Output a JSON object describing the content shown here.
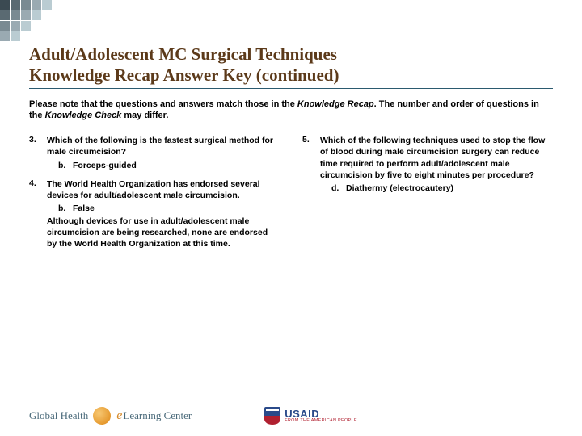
{
  "deco_colors": [
    "#3b4a52",
    "#5a6a72",
    "#7a8a92",
    "#9aaab2",
    "#baccd2",
    "#5a6a72",
    "#7a8a92",
    "#9aaab2",
    "#baccd2",
    "transparent",
    "#7a8a92",
    "#9aaab2",
    "#baccd2",
    "transparent",
    "transparent",
    "#9aaab2",
    "#baccd2",
    "transparent",
    "transparent",
    "transparent"
  ],
  "title_line1": "Adult/Adolescent MC Surgical Techniques",
  "title_line2": "Knowledge Recap Answer Key (continued)",
  "intro_pre": "Please note that the questions and answers match those in the ",
  "intro_em1": "Knowledge Recap",
  "intro_mid": ". The number and order of questions in the ",
  "intro_em2": "Knowledge Check",
  "intro_post": " may differ.",
  "left": [
    {
      "num": "3.",
      "question": "Which of the following is the fastest surgical method for male circumcision?",
      "ans_letter": "b.",
      "ans_text": "Forceps-guided",
      "explain": ""
    },
    {
      "num": "4.",
      "question": "The World Health Organization has endorsed several devices for adult/adolescent male circumcision.",
      "ans_letter": "b.",
      "ans_text": "False",
      "explain": "Although devices for use in adult/adolescent male circumcision are being researched, none are endorsed by the World Health Organization at this time."
    }
  ],
  "right": [
    {
      "num": "5.",
      "question": "Which of the following techniques used to stop the flow of blood during male circumcision surgery can reduce time required to perform adult/adolescent male circumcision by five to eight minutes per procedure?",
      "ans_letter": "d.",
      "ans_text": "Diathermy (electrocautery)",
      "explain": ""
    }
  ],
  "footer": {
    "ghlc_left": "Global Health",
    "ghlc_e": "e",
    "ghlc_right": "Learning Center",
    "usaid_main": "USAID",
    "usaid_sub": "FROM THE AMERICAN PEOPLE"
  }
}
